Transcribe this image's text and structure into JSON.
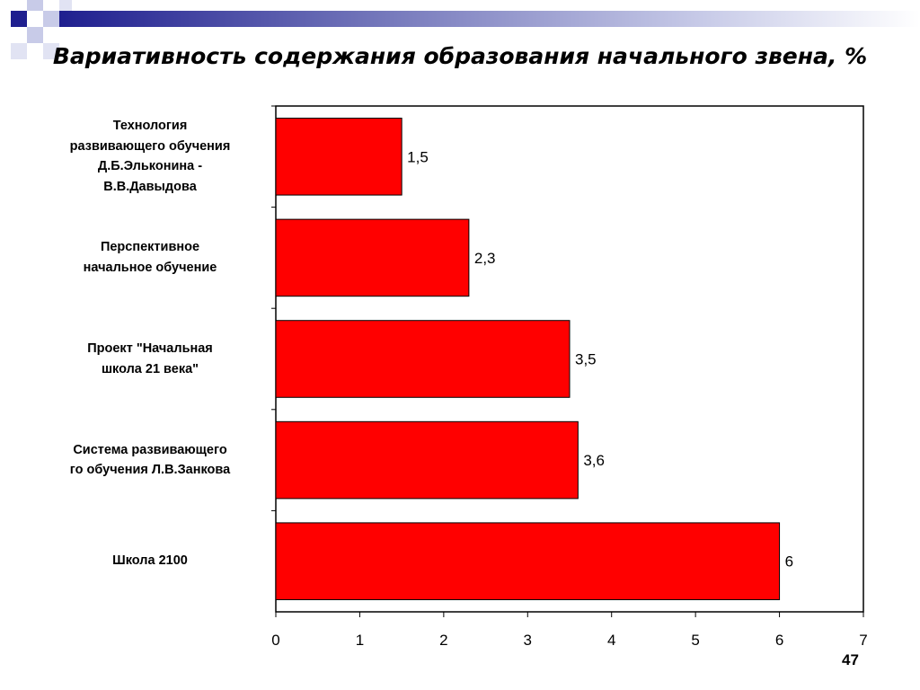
{
  "slide": {
    "title": "Вариативность содержания образования начального звена, %",
    "page_number": "47"
  },
  "colors": {
    "bar_fill": "#ff0000",
    "bar_stroke": "#000000",
    "deco_blue": "#1f1f8f",
    "deco_light": "#c8cbe8"
  },
  "chart_data": {
    "type": "bar",
    "orientation": "horizontal",
    "title": "Вариативность содержания образования начального звена, %",
    "categories": [
      "Технология\nразвивающего обучения\nД.Б.Эльконина -\nВ.В.Давыдова",
      "Перспективное\nначальное обучение",
      "Проект \"Начальная\nшкола 21 века\"",
      "Система развивающего\nго обучения Л.В.Занкова",
      "Школа 2100"
    ],
    "values": [
      1.5,
      2.3,
      3.5,
      3.6,
      6
    ],
    "value_labels": [
      "1,5",
      "2,3",
      "3,5",
      "3,6",
      "6"
    ],
    "xlim": [
      0,
      7
    ],
    "x_ticks": [
      0,
      1,
      2,
      3,
      4,
      5,
      6,
      7
    ],
    "xlabel": "",
    "ylabel": "",
    "grid": false,
    "legend": "none"
  }
}
